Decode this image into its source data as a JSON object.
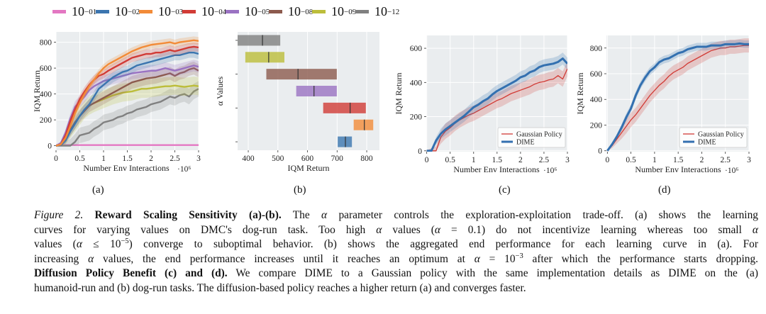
{
  "legend": [
    {
      "base": "10",
      "exp": "−01",
      "color": "#e377c2"
    },
    {
      "base": "10",
      "exp": "−02",
      "color": "#3b75af"
    },
    {
      "base": "10",
      "exp": "−03",
      "color": "#f28b38"
    },
    {
      "base": "10",
      "exp": "−04",
      "color": "#d13b36"
    },
    {
      "base": "10",
      "exp": "−05",
      "color": "#9a72c2"
    },
    {
      "base": "10",
      "exp": "−08",
      "color": "#8c5a4d"
    },
    {
      "base": "10",
      "exp": "−09",
      "color": "#bcbd3a"
    },
    {
      "base": "10",
      "exp": "−12",
      "color": "#808080"
    }
  ],
  "chart_data": [
    {
      "panel_label": "(a)",
      "type": "line",
      "xlabel": "Number Env Interactions",
      "x_multiplier": "·10⁶",
      "ylabel": "IQM Return",
      "xlim": [
        0,
        3
      ],
      "ylim": [
        -35,
        880
      ],
      "grid": true,
      "xticks": [
        "0",
        "0.5",
        "1",
        "1.5",
        "2",
        "2.5",
        "3"
      ],
      "yticks": [
        "0",
        "200",
        "400",
        "600",
        "800"
      ],
      "x": [
        0,
        0.1,
        0.2,
        0.3,
        0.4,
        0.5,
        0.6,
        0.7,
        0.8,
        0.9,
        1.0,
        1.1,
        1.2,
        1.3,
        1.4,
        1.5,
        1.6,
        1.7,
        1.8,
        1.9,
        2.0,
        2.1,
        2.2,
        2.3,
        2.4,
        2.5,
        2.6,
        2.7,
        2.8,
        2.9,
        3.0
      ],
      "series": [
        {
          "name": "10^-01",
          "color": "#e377c2",
          "ci": 4,
          "values": [
            5,
            5,
            5,
            5,
            5,
            5,
            5,
            5,
            5,
            5,
            5,
            5,
            5,
            5,
            5,
            5,
            5,
            5,
            5,
            5,
            5,
            5,
            5,
            5,
            5,
            5,
            5,
            5,
            5,
            5,
            5
          ]
        },
        {
          "name": "10^-12",
          "color": "#808080",
          "ci": 60,
          "values": [
            0,
            0,
            0,
            0,
            30,
            80,
            90,
            100,
            130,
            150,
            180,
            190,
            200,
            220,
            230,
            250,
            260,
            280,
            290,
            300,
            320,
            330,
            340,
            360,
            380,
            370,
            390,
            400,
            380,
            420,
            440
          ]
        },
        {
          "name": "10^-09",
          "color": "#bcbd3a",
          "ci": 70,
          "values": [
            0,
            5,
            50,
            120,
            180,
            230,
            280,
            310,
            330,
            345,
            360,
            375,
            390,
            400,
            410,
            415,
            420,
            430,
            440,
            440,
            445,
            450,
            455,
            460,
            460,
            465,
            460,
            455,
            460,
            465,
            460
          ]
        },
        {
          "name": "10^-08",
          "color": "#8c5a4d",
          "ci": 50,
          "values": [
            0,
            5,
            50,
            120,
            180,
            230,
            270,
            310,
            330,
            350,
            370,
            390,
            410,
            430,
            450,
            470,
            490,
            500,
            510,
            520,
            525,
            530,
            540,
            550,
            560,
            540,
            560,
            570,
            590,
            600,
            580
          ]
        },
        {
          "name": "10^-05",
          "color": "#9a72c2",
          "ci": 45,
          "values": [
            0,
            20,
            100,
            210,
            300,
            340,
            380,
            430,
            460,
            480,
            500,
            510,
            520,
            530,
            540,
            550,
            560,
            565,
            570,
            575,
            580,
            580,
            590,
            600,
            590,
            580,
            590,
            600,
            610,
            620,
            610
          ]
        },
        {
          "name": "10^-02",
          "color": "#3b75af",
          "ci": 40,
          "values": [
            0,
            5,
            40,
            110,
            170,
            230,
            280,
            320,
            380,
            440,
            470,
            500,
            530,
            550,
            570,
            580,
            600,
            620,
            630,
            640,
            650,
            660,
            670,
            680,
            690,
            700,
            700,
            710,
            720,
            720,
            710
          ]
        },
        {
          "name": "10^-04",
          "color": "#d13b36",
          "ci": 35,
          "values": [
            0,
            10,
            80,
            190,
            280,
            360,
            420,
            470,
            510,
            540,
            555,
            580,
            600,
            620,
            640,
            660,
            680,
            690,
            700,
            710,
            710,
            720,
            720,
            730,
            740,
            730,
            740,
            750,
            760,
            765,
            760
          ]
        },
        {
          "name": "10^-03",
          "color": "#f28b38",
          "ci": 30,
          "values": [
            0,
            10,
            60,
            150,
            250,
            330,
            400,
            460,
            510,
            560,
            600,
            630,
            650,
            670,
            690,
            710,
            730,
            745,
            760,
            770,
            780,
            785,
            790,
            795,
            800,
            790,
            800,
            805,
            810,
            815,
            810
          ]
        }
      ]
    },
    {
      "panel_label": "(b)",
      "type": "bar",
      "orientation": "horizontal",
      "xlabel": "IQM Return",
      "ylabel": "α Values",
      "xlim": [
        364,
        843
      ],
      "grid": true,
      "xticks": [
        "400",
        "500",
        "600",
        "700",
        "800"
      ],
      "bars": [
        {
          "alpha": "10^-12",
          "color": "#808080",
          "low": 364,
          "median": 448,
          "high": 508
        },
        {
          "alpha": "10^-09",
          "color": "#bcbd3a",
          "low": 390,
          "median": 469,
          "high": 522
        },
        {
          "alpha": "10^-08",
          "color": "#8c5a4d",
          "low": 461,
          "median": 568,
          "high": 699
        },
        {
          "alpha": "10^-05",
          "color": "#9a72c2",
          "low": 562,
          "median": 622,
          "high": 699
        },
        {
          "alpha": "10^-04",
          "color": "#d13b36",
          "low": 653,
          "median": 744,
          "high": 797
        },
        {
          "alpha": "10^-03",
          "color": "#f28b38",
          "low": 756,
          "median": 792,
          "high": 822
        },
        {
          "alpha": "10^-02",
          "color": "#3b75af",
          "low": 702,
          "median": 728,
          "high": 750
        }
      ]
    },
    {
      "panel_label": "(c)",
      "type": "line",
      "xlabel": "Number Env Interactions",
      "x_multiplier": "·10⁶",
      "ylabel": "IQM Return",
      "xlim": [
        -0.01,
        3
      ],
      "ylim": [
        -5,
        675
      ],
      "grid": true,
      "legend_position": "bottom-right",
      "xticks": [
        "0",
        "0.5",
        "1",
        "1.5",
        "2",
        "2.5",
        "3"
      ],
      "yticks": [
        "0",
        "200",
        "400",
        "600"
      ],
      "x": [
        0,
        0.1,
        0.2,
        0.3,
        0.4,
        0.5,
        0.6,
        0.7,
        0.8,
        0.9,
        1.0,
        1.1,
        1.2,
        1.3,
        1.4,
        1.5,
        1.6,
        1.7,
        1.8,
        1.9,
        2.0,
        2.1,
        2.2,
        2.3,
        2.4,
        2.5,
        2.6,
        2.7,
        2.8,
        2.9,
        3.0
      ],
      "series": [
        {
          "name": "Gaussian Policy",
          "color": "#d13b36",
          "ci": 45,
          "width": 1.3,
          "values": [
            0,
            0,
            0,
            80,
            115,
            135,
            160,
            180,
            195,
            210,
            220,
            235,
            250,
            265,
            280,
            295,
            305,
            320,
            335,
            345,
            355,
            365,
            375,
            390,
            400,
            405,
            415,
            420,
            440,
            420,
            480
          ]
        },
        {
          "name": "DIME",
          "color": "#3370b0",
          "ci": 35,
          "width": 3,
          "values": [
            0,
            0,
            60,
            100,
            125,
            145,
            165,
            185,
            205,
            230,
            255,
            270,
            290,
            305,
            330,
            350,
            365,
            380,
            395,
            410,
            430,
            440,
            460,
            470,
            490,
            500,
            505,
            510,
            520,
            540,
            510
          ]
        }
      ]
    },
    {
      "panel_label": "(d)",
      "type": "line",
      "xlabel": "Number Env Interactions",
      "x_multiplier": "·10⁶",
      "ylabel": "IQM Return",
      "xlim": [
        -0.02,
        3
      ],
      "ylim": [
        -7,
        898
      ],
      "grid": true,
      "legend_position": "bottom-right",
      "xticks": [
        "0",
        "0.5",
        "1",
        "1.5",
        "2",
        "2.5",
        "3"
      ],
      "yticks": [
        "0",
        "200",
        "400",
        "600",
        "800"
      ],
      "x": [
        0,
        0.1,
        0.2,
        0.3,
        0.4,
        0.5,
        0.6,
        0.7,
        0.8,
        0.9,
        1.0,
        1.1,
        1.2,
        1.3,
        1.4,
        1.5,
        1.6,
        1.7,
        1.8,
        1.9,
        2.0,
        2.1,
        2.2,
        2.3,
        2.4,
        2.5,
        2.6,
        2.7,
        2.8,
        2.9,
        3.0
      ],
      "series": [
        {
          "name": "Gaussian Policy",
          "color": "#d13b36",
          "ci": 55,
          "width": 1.3,
          "values": [
            0,
            40,
            90,
            140,
            190,
            240,
            280,
            330,
            380,
            430,
            470,
            510,
            540,
            580,
            610,
            630,
            650,
            680,
            700,
            720,
            740,
            760,
            780,
            790,
            800,
            800,
            810,
            810,
            815,
            820,
            820
          ]
        },
        {
          "name": "DIME",
          "color": "#3370b0",
          "ci": 30,
          "width": 3,
          "values": [
            0,
            50,
            110,
            180,
            260,
            330,
            430,
            510,
            570,
            620,
            650,
            690,
            710,
            720,
            740,
            760,
            770,
            790,
            800,
            810,
            810,
            810,
            820,
            820,
            820,
            830,
            830,
            830,
            835,
            830,
            830
          ]
        }
      ]
    }
  ],
  "caption": [
    [
      {
        "t": "Figure 2.",
        "s": "i"
      },
      {
        "t": " Reward Scaling Sensitivity (a)-(b).",
        "s": "b"
      },
      {
        "t": " The "
      },
      {
        "t": "α",
        "s": "i"
      },
      {
        "t": " parameter controls the exploration-exploitation trade-off. (a) shows the learning"
      }
    ],
    [
      {
        "t": "curves for varying values on DMC's dog-run task.  Too high "
      },
      {
        "t": "α",
        "s": "i"
      },
      {
        "t": " values ("
      },
      {
        "t": "α",
        "s": "i"
      },
      {
        "t": " = 0.1) do not incentivize learning whereas too small "
      },
      {
        "t": "α",
        "s": "i"
      }
    ],
    [
      {
        "t": "values ("
      },
      {
        "t": "α",
        "s": "i"
      },
      {
        "t": " ≤ 10"
      },
      {
        "t": "−5",
        "s": "sup"
      },
      {
        "t": ") converge to suboptimal behavior. (b) shows the aggregated end performance for each learning curve in (a). For"
      }
    ],
    [
      {
        "t": "increasing "
      },
      {
        "t": "α",
        "s": "i"
      },
      {
        "t": " values, the end performance increases until it reaches an optimum at "
      },
      {
        "t": "α",
        "s": "i"
      },
      {
        "t": " = 10"
      },
      {
        "t": "−3",
        "s": "sup"
      },
      {
        "t": " after which the performance starts dropping."
      }
    ],
    [
      {
        "t": "Diffusion Policy Benefit (c) and (d).",
        "s": "b"
      },
      {
        "t": " We compare DIME to a Gaussian policy with the same implementation details as DIME on the (a)"
      }
    ],
    [
      {
        "t": "humanoid-run and (b) dog-run tasks. The diffusion-based policy reaches a higher return (a) and converges faster."
      }
    ]
  ]
}
